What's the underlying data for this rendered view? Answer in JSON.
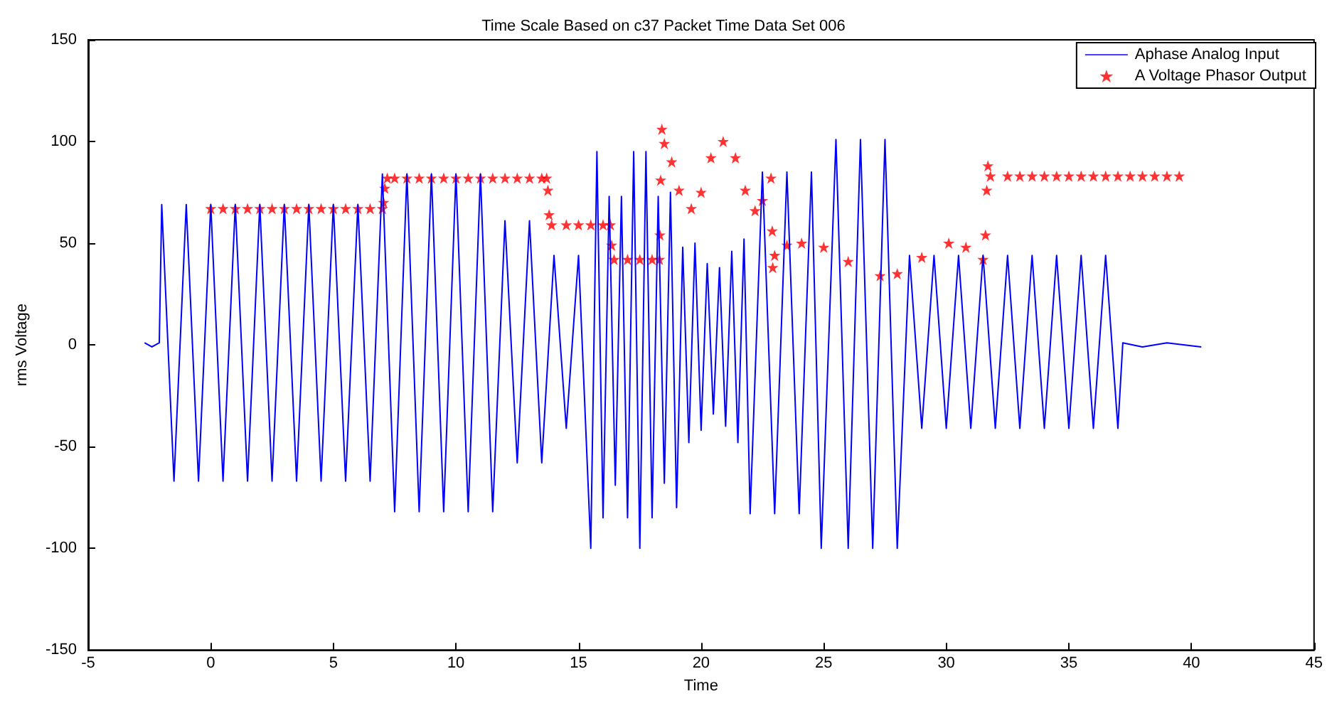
{
  "chart_data": {
    "type": "line",
    "title": "Time Scale Based on c37 Packet Time Data Set 006",
    "xlabel": "Time",
    "ylabel": "rms Voltage",
    "xlim": [
      -5,
      45
    ],
    "xticks": [
      -5,
      0,
      5,
      10,
      15,
      20,
      25,
      30,
      35,
      40,
      45
    ],
    "ylim": [
      -150,
      150
    ],
    "yticks": [
      -150,
      -100,
      -50,
      0,
      50,
      100,
      150
    ],
    "grid": false,
    "legend": "top right",
    "series": [
      {
        "name": "Aphase Analog Input",
        "marker": "none",
        "color": "#0000ff",
        "x": [
          -2.7,
          -2.4,
          -2.1,
          -2.0,
          -1.5,
          -1.0,
          -0.5,
          0,
          0.5,
          1,
          1.5,
          2,
          2.5,
          3,
          3.5,
          4,
          4.5,
          5,
          5.5,
          6,
          6.5,
          7.0,
          7.5,
          8,
          8.5,
          9,
          9.5,
          10,
          10.5,
          11,
          11.5,
          12.0,
          12.5,
          13.0,
          13.5,
          14.0,
          14.5,
          15.0,
          15.5,
          15.75,
          16.0,
          16.25,
          16.5,
          16.75,
          17.0,
          17.25,
          17.5,
          17.75,
          18.0,
          18.25,
          18.5,
          18.75,
          19.0,
          19.25,
          19.5,
          19.75,
          20.0,
          20.25,
          20.5,
          20.75,
          21.0,
          21.25,
          21.5,
          21.75,
          22.0,
          22.5,
          23.0,
          23.5,
          24.0,
          24.5,
          24.9,
          25.5,
          26.0,
          26.5,
          27.0,
          27.5,
          28.0,
          28.5,
          29.0,
          29.5,
          30,
          30.5,
          31,
          31.5,
          32,
          32.5,
          33,
          33.5,
          34,
          34.5,
          35,
          35.5,
          36,
          36.5,
          37.0,
          37.2,
          38,
          39,
          40.4
        ],
        "values": [
          1,
          -1,
          1,
          69,
          -67,
          69,
          -67,
          69,
          -67,
          69,
          -67,
          69,
          -67,
          69,
          -67,
          69,
          -67,
          69,
          -67,
          69,
          -67,
          84,
          -82,
          84,
          -82,
          84,
          -82,
          84,
          -82,
          84,
          -82,
          61,
          -58,
          61,
          -58,
          44,
          -41,
          44,
          -100,
          95,
          -85,
          73,
          -69,
          73,
          -85,
          95,
          -100,
          95,
          -85,
          73,
          -68,
          75,
          -80,
          48,
          -48,
          50,
          -42,
          40,
          -34,
          38,
          -40,
          46,
          -48,
          52,
          -83,
          85,
          -83,
          85,
          -83,
          85,
          -100,
          101,
          -100,
          101,
          -100,
          101,
          -100,
          44,
          -41,
          44,
          -41,
          44,
          -41,
          44,
          -41,
          44,
          -41,
          44,
          -41,
          44,
          -41,
          44,
          -41,
          44,
          -41,
          1,
          -1,
          1,
          -1
        ]
      },
      {
        "name": "A Voltage Phasor Output",
        "type": "scatter",
        "marker": "star",
        "color": "#ff0000",
        "x": [
          0,
          0.5,
          1,
          1.5,
          2,
          2.5,
          3,
          3.5,
          4,
          4.5,
          5,
          5.5,
          6,
          6.5,
          7.0,
          7.05,
          7.1,
          7.2,
          7.5,
          8,
          8.5,
          9,
          9.5,
          10,
          10.5,
          11,
          11.5,
          12,
          12.5,
          13,
          13.5,
          13.7,
          13.75,
          13.8,
          13.9,
          14.5,
          15,
          15.5,
          16.0,
          16.3,
          16.35,
          16.45,
          17,
          17.5,
          18.0,
          18.3,
          18.32,
          18.35,
          18.4,
          18.5,
          18.8,
          19.1,
          19.6,
          20.0,
          20.4,
          20.9,
          21.4,
          21.8,
          22.2,
          22.5,
          22.85,
          22.9,
          22.92,
          23.0,
          23.5,
          24.1,
          25,
          26,
          27.3,
          28.0,
          29.0,
          30.1,
          30.8,
          31.5,
          31.6,
          31.65,
          31.7,
          31.8,
          32.5,
          33,
          33.5,
          34,
          34.5,
          35,
          35.5,
          36,
          36.5,
          37,
          37.5,
          38,
          38.5,
          39,
          39.5
        ],
        "values": [
          67,
          67,
          67,
          67,
          67,
          67,
          67,
          67,
          67,
          67,
          67,
          67,
          67,
          67,
          67,
          70,
          77,
          82,
          82,
          82,
          82,
          82,
          82,
          82,
          82,
          82,
          82,
          82,
          82,
          82,
          82,
          82,
          76,
          64,
          59,
          59,
          59,
          59,
          59,
          59,
          49,
          42,
          42,
          42,
          42,
          42,
          54,
          81,
          106,
          99,
          90,
          76,
          67,
          75,
          92,
          100,
          92,
          76,
          66,
          71,
          82,
          56,
          38,
          44,
          49,
          50,
          48,
          41,
          34,
          35,
          43,
          50,
          48,
          42,
          54,
          76,
          88,
          83,
          83,
          83,
          83,
          83,
          83,
          83,
          83,
          83,
          83,
          83,
          83,
          83,
          83,
          83,
          83
        ]
      }
    ]
  }
}
